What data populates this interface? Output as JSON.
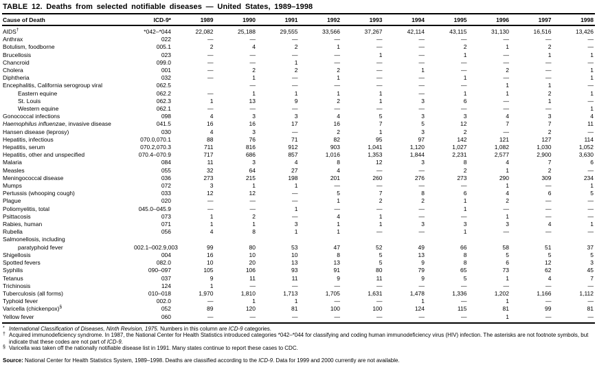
{
  "title": "TABLE 12. Deaths from selected notifiable diseases — United States, 1989–1998",
  "table": {
    "header": {
      "cause": "Cause of Death",
      "icd": "ICD-9*",
      "years": [
        "1989",
        "1990",
        "1991",
        "1992",
        "1993",
        "1994",
        "1995",
        "1996",
        "1997",
        "1998"
      ]
    },
    "rows": [
      {
        "label": "AIDS",
        "sup": "†",
        "icd": "*042–*044",
        "values": [
          "22,082",
          "25,188",
          "29,555",
          "33,566",
          "37,267",
          "42,114",
          "43,115",
          "31,130",
          "16,516",
          "13,426"
        ]
      },
      {
        "label": "Anthrax",
        "icd": "022",
        "values": [
          "—",
          "—",
          "—",
          "—",
          "—",
          "—",
          "—",
          "—",
          "—",
          "—"
        ]
      },
      {
        "label": "Botulism, foodborne",
        "icd": "005.1",
        "values": [
          "2",
          "4",
          "2",
          "1",
          "—",
          "—",
          "2",
          "1",
          "2",
          "—"
        ]
      },
      {
        "label": "Brucellosis",
        "icd": "023",
        "values": [
          "—",
          "—",
          "—",
          "—",
          "1",
          "—",
          "1",
          "—",
          "1",
          "1"
        ]
      },
      {
        "label": "Chancroid",
        "icd": "099.0",
        "values": [
          "—",
          "—",
          "1",
          "—",
          "—",
          "—",
          "—",
          "—",
          "—",
          "—"
        ]
      },
      {
        "label": "Cholera",
        "icd": "001",
        "values": [
          "—",
          "2",
          "2",
          "2",
          "—",
          "1",
          "—",
          "2",
          "—",
          "1"
        ]
      },
      {
        "label": "Diphtheria",
        "icd": "032",
        "values": [
          "—",
          "1",
          "—",
          "1",
          "—",
          "—",
          "1",
          "—",
          "—",
          "1"
        ]
      },
      {
        "label": "Encephalitis, California serogroup viral",
        "icd": "062.5",
        "values": [
          "",
          "—",
          "—",
          "—",
          "—",
          "—",
          "—",
          "1",
          "1",
          "—"
        ]
      },
      {
        "label": "Eastern equine",
        "indent": 1,
        "icd": "062.2",
        "values": [
          "—",
          "1",
          "1",
          "1",
          "1",
          "—",
          "1",
          "1",
          "2",
          "1"
        ]
      },
      {
        "label": "St. Louis",
        "indent": 1,
        "icd": "062.3",
        "values": [
          "1",
          "13",
          "9",
          "2",
          "1",
          "3",
          "6",
          "—",
          "1",
          "—"
        ]
      },
      {
        "label": "Western equine",
        "indent": 1,
        "icd": "062.1",
        "values": [
          "—",
          "—",
          "—",
          "—",
          "—",
          "—",
          "—",
          "—",
          "—",
          "1"
        ]
      },
      {
        "label": "Gonococcal infections",
        "icd": "098",
        "values": [
          "4",
          "3",
          "3",
          "4",
          "5",
          "3",
          "3",
          "4",
          "3",
          "4"
        ]
      },
      {
        "label_italic": "Haemophilus influenzae",
        "label": ", invasive disease",
        "icd": "041.5",
        "values": [
          "16",
          "16",
          "17",
          "16",
          "7",
          "5",
          "12",
          "7",
          "7",
          "11"
        ]
      },
      {
        "label": "Hansen disease (leprosy)",
        "icd": "030",
        "values": [
          "4",
          "3",
          "—",
          "2",
          "1",
          "3",
          "2",
          "—",
          "2",
          "—"
        ]
      },
      {
        "label": "Hepatitis, infectious",
        "icd": "070.0,070.1",
        "values": [
          "88",
          "76",
          "71",
          "82",
          "95",
          "97",
          "142",
          "121",
          "127",
          "114"
        ]
      },
      {
        "label": "Hepatitis, serum",
        "icd": "070.2,070.3",
        "values": [
          "711",
          "816",
          "912",
          "903",
          "1,041",
          "1,120",
          "1,027",
          "1,082",
          "1,030",
          "1,052"
        ]
      },
      {
        "label": "Hepatitis, other and unspecified",
        "icd": "070.4–070.9",
        "values": [
          "717",
          "686",
          "857",
          "1,016",
          "1,353",
          "1,844",
          "2,231",
          "2,577",
          "2,900",
          "3,630"
        ]
      },
      {
        "label": "Malaria",
        "icd": "084",
        "values": [
          "11",
          "3",
          "4",
          "8",
          "12",
          "3",
          "8",
          "4",
          "7",
          "6"
        ]
      },
      {
        "label": "Measles",
        "icd": "055",
        "values": [
          "32",
          "64",
          "27",
          "4",
          "—",
          "—",
          "2",
          "1",
          "2",
          "—"
        ]
      },
      {
        "label": "Meningococcal disease",
        "icd": "036",
        "values": [
          "273",
          "215",
          "198",
          "201",
          "260",
          "276",
          "273",
          "290",
          "309",
          "234"
        ]
      },
      {
        "label": "Mumps",
        "icd": "072",
        "values": [
          "3",
          "1",
          "1",
          "—",
          "—",
          "—",
          "—",
          "1",
          "—",
          "1"
        ]
      },
      {
        "label": "Pertussis (whooping cough)",
        "icd": "033",
        "values": [
          "12",
          "12",
          "—",
          "5",
          "7",
          "8",
          "6",
          "4",
          "6",
          "5"
        ]
      },
      {
        "label": "Plague",
        "icd": "020",
        "values": [
          "—",
          "—",
          "—",
          "1",
          "2",
          "2",
          "1",
          "2",
          "—",
          "—"
        ]
      },
      {
        "label": "Poliomyelitis, total",
        "icd": "045.0–045.9",
        "values": [
          "—",
          "—",
          "1",
          "—",
          "—",
          "—",
          "1",
          "—",
          "—",
          "—"
        ]
      },
      {
        "label": "Psittacosis",
        "icd": "073",
        "values": [
          "1",
          "2",
          "—",
          "4",
          "1",
          "—",
          "—",
          "1",
          "—",
          "—"
        ]
      },
      {
        "label": "Rabies, human",
        "icd": "071",
        "values": [
          "1",
          "1",
          "3",
          "1",
          "1",
          "3",
          "3",
          "3",
          "4",
          "1"
        ]
      },
      {
        "label": "Rubella",
        "icd": "056",
        "values": [
          "4",
          "8",
          "1",
          "1",
          "—",
          "—",
          "1",
          "—",
          "—",
          "—"
        ]
      },
      {
        "label": "Salmonellosis, including",
        "icd": "",
        "values": [
          "",
          "",
          "",
          "",
          "",
          "",
          "",
          "",
          "",
          ""
        ]
      },
      {
        "label": "paratyphoid fever",
        "indent": 1,
        "icd": "002.1–002.9,003",
        "values": [
          "99",
          "80",
          "53",
          "47",
          "52",
          "49",
          "66",
          "58",
          "51",
          "37"
        ]
      },
      {
        "label": "Shigellosis",
        "icd": "004",
        "values": [
          "16",
          "10",
          "10",
          "8",
          "5",
          "13",
          "8",
          "5",
          "5",
          "5"
        ]
      },
      {
        "label": "Spotted fevers",
        "icd": "082.0",
        "values": [
          "10",
          "20",
          "13",
          "13",
          "5",
          "9",
          "8",
          "6",
          "12",
          "3"
        ]
      },
      {
        "label": "Syphilis",
        "icd": "090–097",
        "values": [
          "105",
          "106",
          "93",
          "91",
          "80",
          "79",
          "65",
          "73",
          "62",
          "45"
        ]
      },
      {
        "label": "Tetanus",
        "icd": "037",
        "values": [
          "9",
          "11",
          "11",
          "9",
          "11",
          "9",
          "5",
          "1",
          "4",
          "7"
        ]
      },
      {
        "label": "Trichinosis",
        "icd": "124",
        "values": [
          "1",
          "—",
          "—",
          "—",
          "—",
          "—",
          "—",
          "—",
          "—",
          "—"
        ]
      },
      {
        "label": "Tuberculosis (all forms)",
        "icd": "010–018",
        "values": [
          "1,970",
          "1,810",
          "1,713",
          "1,705",
          "1,631",
          "1,478",
          "1,336",
          "1,202",
          "1,166",
          "1,112"
        ]
      },
      {
        "label": "Typhoid fever",
        "icd": "002.0",
        "values": [
          "—",
          "1",
          "1",
          "—",
          "—",
          "1",
          "—",
          "1",
          "—",
          "—"
        ]
      },
      {
        "label": "Varicella (chickenpox)",
        "sup": "§",
        "icd": "052",
        "values": [
          "89",
          "120",
          "81",
          "100",
          "100",
          "124",
          "115",
          "81",
          "99",
          "81"
        ]
      },
      {
        "label": "Yellow fever",
        "icd": "060",
        "values": [
          "—",
          "—",
          "—",
          "—",
          "—",
          "—",
          "—",
          "1",
          "—",
          "—"
        ]
      }
    ]
  },
  "footnotes": [
    {
      "marker": "*",
      "segments": [
        {
          "text": "International Classification of Diseases, Ninth Revision, 1975.",
          "italic": true
        },
        {
          "text": " Numbers in this column are ",
          "italic": false
        },
        {
          "text": "ICD-9",
          "italic": true
        },
        {
          "text": " categories.",
          "italic": false
        }
      ]
    },
    {
      "marker": "†",
      "segments": [
        {
          "text": "Acquired immunodeficiency syndrome. In 1987, the National Center for Health Statistics introduced categories *042–*044 for classifying and coding human immunodeficiency virus (HIV) infection. The asterisks are not footnote symbols, but indicate that these codes are not part of ",
          "italic": false
        },
        {
          "text": "ICD-9",
          "italic": true
        },
        {
          "text": ".",
          "italic": false
        }
      ]
    },
    {
      "marker": "§",
      "segments": [
        {
          "text": "Varicella was taken off the nationally notifiable disease list in 1991. Many states continue to report these cases to CDC.",
          "italic": false
        }
      ]
    }
  ],
  "source": {
    "label": "Source:",
    "segments": [
      {
        "text": " National Center for Health Statistics System, 1989–1998. Deaths are classified according to the ",
        "italic": false
      },
      {
        "text": "ICD-9",
        "italic": true
      },
      {
        "text": ". Data for 1999 and 2000 currently are not available.",
        "italic": false
      }
    ]
  }
}
